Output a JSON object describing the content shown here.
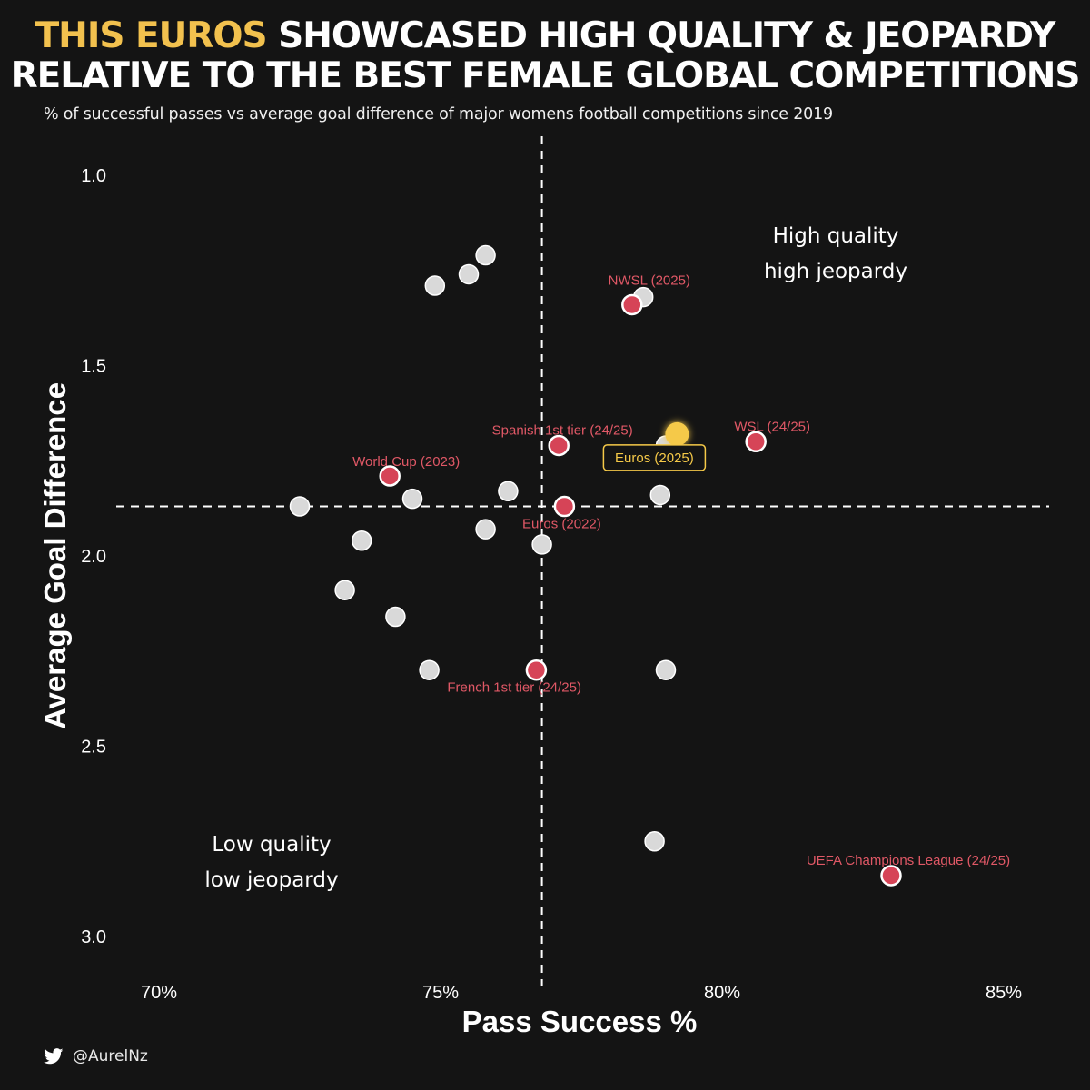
{
  "title": {
    "highlight": "THIS EUROS",
    "line1_rest": " SHOWCASED HIGH QUALITY & JEOPARDY",
    "line2": "RELATIVE TO THE BEST FEMALE GLOBAL COMPETITIONS"
  },
  "subtitle": "% of successful passes vs average goal difference of major womens football competitions since 2019",
  "footer": {
    "handle": "@AurelNz",
    "icon": "twitter-bird-icon"
  },
  "colors": {
    "background": "#141414",
    "highlight": "#f2c14e",
    "point_grey": "#d9d9d9",
    "point_red": "#d64457",
    "label_red": "#e05866",
    "euros_gold": "#f5c948"
  },
  "chart_data": {
    "type": "scatter",
    "xlabel": "Pass Success %",
    "ylabel": "Average Goal Difference",
    "xlim": [
      70,
      85
    ],
    "ylim": [
      3.0,
      1.0
    ],
    "y_inverted": true,
    "x_ticks": [
      {
        "value": 70,
        "label": "70%"
      },
      {
        "value": 75,
        "label": "75%"
      },
      {
        "value": 80,
        "label": "80%"
      },
      {
        "value": 85,
        "label": "85%"
      }
    ],
    "y_ticks": [
      {
        "value": 1.0,
        "label": "1.0"
      },
      {
        "value": 1.5,
        "label": "1.5"
      },
      {
        "value": 2.0,
        "label": "2.0"
      },
      {
        "value": 2.5,
        "label": "2.5"
      },
      {
        "value": 3.0,
        "label": "3.0"
      }
    ],
    "reference_lines": {
      "x": 76.8,
      "y": 1.87
    },
    "quadrant_labels": [
      {
        "text": [
          "High quality",
          "high jeopardy"
        ],
        "position": "top-right"
      },
      {
        "text": [
          "Low quality",
          "low jeopardy"
        ],
        "position": "bottom-left"
      }
    ],
    "grey_points": [
      {
        "x": 75.8,
        "y": 1.21
      },
      {
        "x": 75.5,
        "y": 1.26
      },
      {
        "x": 74.9,
        "y": 1.29
      },
      {
        "x": 78.6,
        "y": 1.32
      },
      {
        "x": 79.0,
        "y": 1.71
      },
      {
        "x": 76.2,
        "y": 1.83
      },
      {
        "x": 74.5,
        "y": 1.85
      },
      {
        "x": 72.5,
        "y": 1.87
      },
      {
        "x": 78.9,
        "y": 1.84
      },
      {
        "x": 75.8,
        "y": 1.93
      },
      {
        "x": 73.6,
        "y": 1.96
      },
      {
        "x": 76.8,
        "y": 1.97
      },
      {
        "x": 73.3,
        "y": 2.09
      },
      {
        "x": 74.2,
        "y": 2.16
      },
      {
        "x": 74.8,
        "y": 2.3
      },
      {
        "x": 79.0,
        "y": 2.3
      },
      {
        "x": 78.8,
        "y": 2.75
      }
    ],
    "red_points": [
      {
        "label": "NWSL (2025)",
        "x": 78.4,
        "y": 1.34
      },
      {
        "label": "Spanish 1st tier (24/25)",
        "x": 77.1,
        "y": 1.71
      },
      {
        "label": "WSL (24/25)",
        "x": 80.6,
        "y": 1.7
      },
      {
        "label": "World Cup (2023)",
        "x": 74.1,
        "y": 1.79
      },
      {
        "label": "Euros (2022)",
        "x": 77.2,
        "y": 1.87
      },
      {
        "label": "French 1st tier (24/25)",
        "x": 76.7,
        "y": 2.3
      },
      {
        "label": "UEFA Champions League (24/25)",
        "x": 83.0,
        "y": 2.84
      }
    ],
    "highlight_point": {
      "label": "Euros (2025)",
      "x": 79.2,
      "y": 1.68
    }
  }
}
